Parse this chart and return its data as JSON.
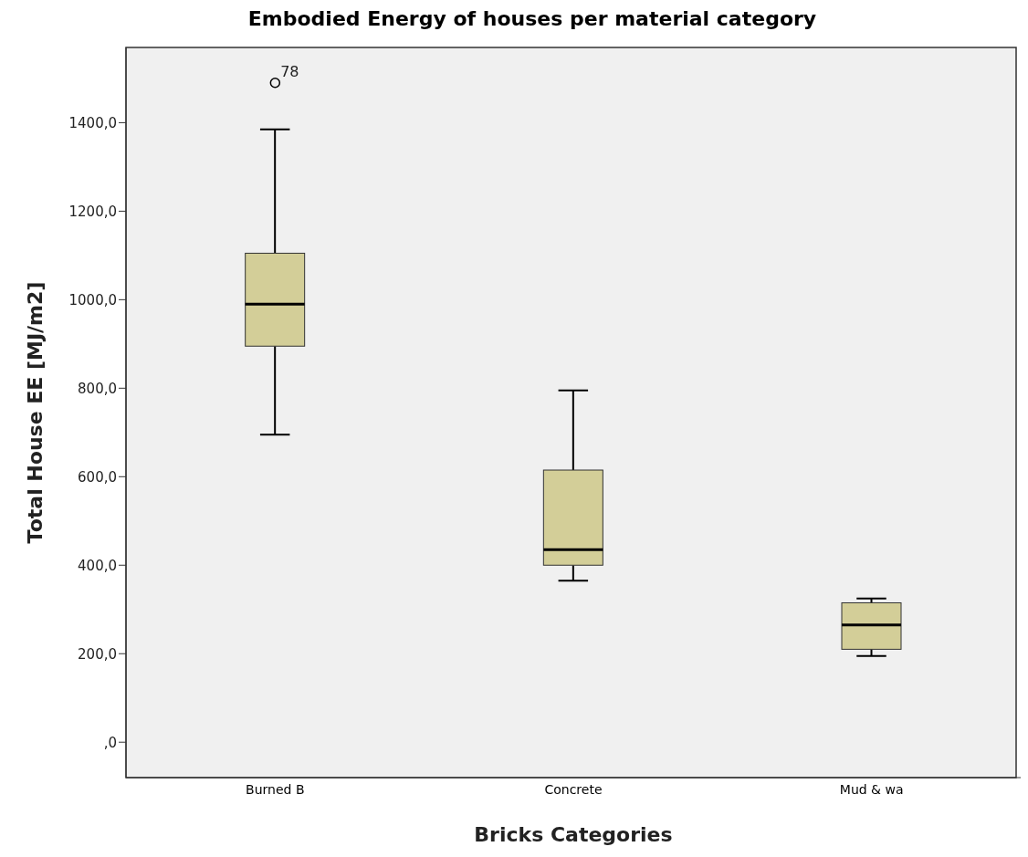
{
  "chart_data": {
    "type": "box",
    "title": "Embodied Energy of houses per material category",
    "xlabel": "Bricks Categories",
    "ylabel": "Total House EE [MJ/m2]",
    "categories": [
      "Burned B",
      "Concrete",
      "Mud & wa"
    ],
    "series": [
      {
        "color": "#d3ce98",
        "boxes": [
          {
            "low": 695,
            "q1": 895,
            "median": 990,
            "q3": 1105,
            "high": 1385,
            "outliers": [
              1490
            ]
          },
          {
            "low": 365,
            "q1": 400,
            "median": 435,
            "q3": 615,
            "high": 795
          },
          {
            "low": 195,
            "q1": 210,
            "median": 265,
            "q3": 315,
            "high": 325
          }
        ]
      }
    ],
    "ylim": [
      -80,
      1570
    ],
    "yticks": [
      {
        "value": 0,
        "label": ",0"
      },
      {
        "value": 200,
        "label": "200,0"
      },
      {
        "value": 400,
        "label": "400,0"
      },
      {
        "value": 600,
        "label": "600,0"
      },
      {
        "value": 800,
        "label": "800,0"
      },
      {
        "value": 1000,
        "label": "1000,0"
      },
      {
        "value": 1200,
        "label": "1200,0"
      },
      {
        "value": 1400,
        "label": "1400,0"
      }
    ],
    "annotations": [
      "78"
    ],
    "grid": false,
    "legend": false
  }
}
